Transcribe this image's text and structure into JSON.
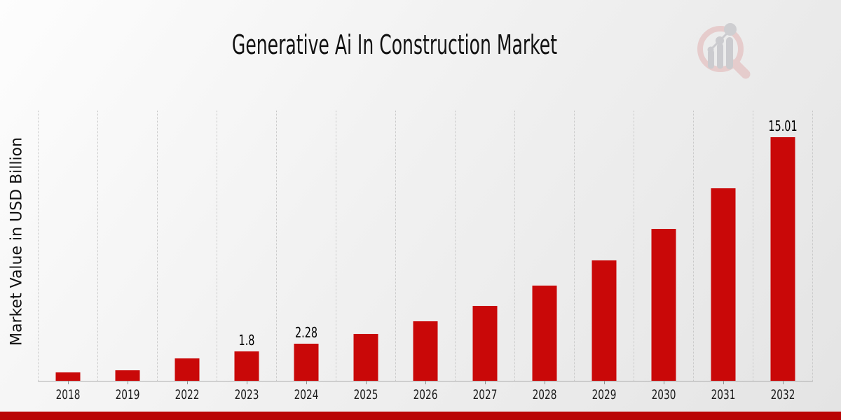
{
  "title": "Generative Ai In Construction Market",
  "y_axis_label": "Market Value in USD Billion",
  "colors": {
    "bar": "#c90808",
    "bottom_strip": "#b90404",
    "gridline": "#c7c7c7",
    "axis_line": "#aeaeae",
    "title_text": "#111111",
    "logo_ring_pink": "#e5c7c7",
    "logo_bar_gray": "#c6c6ca"
  },
  "logo": {
    "name": "magnifier-bar-chart-watermark"
  },
  "chart_data": {
    "type": "bar",
    "title": "Generative Ai In Construction Market",
    "xlabel": "",
    "ylabel": "Market Value in USD Billion",
    "categories": [
      "2018",
      "2019",
      "2022",
      "2023",
      "2024",
      "2025",
      "2026",
      "2027",
      "2028",
      "2029",
      "2030",
      "2031",
      "2032"
    ],
    "values": [
      0.5,
      0.65,
      1.4,
      1.8,
      2.28,
      2.89,
      3.65,
      4.62,
      5.85,
      7.4,
      9.37,
      11.86,
      15.01
    ],
    "bar_labels": {
      "2023": "1.8",
      "2024": "2.28",
      "2032": "15.01"
    },
    "ylim": [
      0,
      16.64
    ],
    "grid": "vertical-dotted",
    "legend": "none",
    "bar_color": "#c90808"
  }
}
